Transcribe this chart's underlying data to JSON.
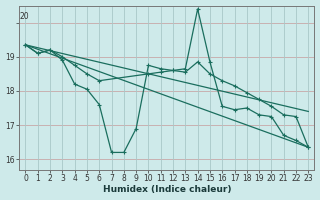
{
  "title": "",
  "xlabel": "Humidex (Indice chaleur)",
  "bg_color": "#ceeaea",
  "grid_color_h": "#c8a0a0",
  "grid_color_v": "#b0d0d0",
  "line_color": "#1a6e5e",
  "xlim": [
    -0.5,
    23.5
  ],
  "ylim": [
    15.7,
    20.5
  ],
  "xticks": [
    0,
    1,
    2,
    3,
    4,
    5,
    6,
    7,
    8,
    9,
    10,
    11,
    12,
    13,
    14,
    15,
    16,
    17,
    18,
    19,
    20,
    21,
    22,
    23
  ],
  "yticks": [
    16,
    17,
    18,
    19,
    20
  ],
  "ytop_label": "20",
  "series_data": [
    {
      "x": [
        0,
        1,
        2,
        3,
        4,
        5,
        6,
        7,
        8,
        9,
        10,
        11,
        12,
        13,
        14,
        15,
        16,
        17,
        18,
        19,
        20,
        21,
        22,
        23
      ],
      "y": [
        19.35,
        19.1,
        19.2,
        18.9,
        18.2,
        18.05,
        17.6,
        16.2,
        16.2,
        16.9,
        18.75,
        18.65,
        18.6,
        18.65,
        20.4,
        18.85,
        17.55,
        17.45,
        17.5,
        17.3,
        17.25,
        16.7,
        16.55,
        16.35
      ],
      "marker": true
    },
    {
      "x": [
        0,
        1,
        2,
        3,
        4,
        5,
        6,
        10,
        11,
        12,
        13,
        14,
        15,
        16,
        17,
        18,
        19,
        20,
        21,
        22,
        23
      ],
      "y": [
        19.35,
        19.1,
        19.2,
        19.0,
        18.75,
        18.5,
        18.3,
        18.5,
        18.55,
        18.6,
        18.55,
        18.85,
        18.5,
        18.3,
        18.15,
        17.95,
        17.75,
        17.55,
        17.3,
        17.25,
        16.35
      ],
      "marker": true
    },
    {
      "x": [
        0,
        23
      ],
      "y": [
        19.35,
        16.35
      ],
      "marker": false
    },
    {
      "x": [
        0,
        23
      ],
      "y": [
        19.35,
        17.4
      ],
      "marker": false
    }
  ]
}
